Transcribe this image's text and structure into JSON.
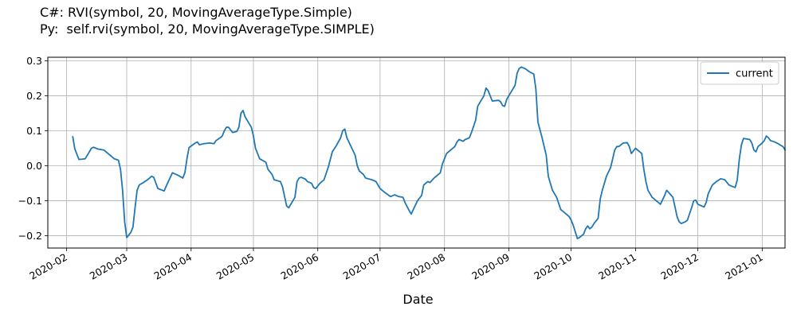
{
  "title_lines": [
    "C#: RVI(symbol, 20, MovingAverageType.Simple)",
    "Py:  self.rvi(symbol, 20, MovingAverageType.SIMPLE)"
  ],
  "chart_data": {
    "type": "line",
    "title": "",
    "xlabel": "Date",
    "ylabel": "",
    "xlim": [
      "2020-01-23",
      "2021-01-12"
    ],
    "ylim": [
      -0.235,
      0.31
    ],
    "grid": true,
    "legend": "top-right",
    "colors": {
      "current": "#1f77b4"
    },
    "x_ticks": [
      "2020-02-01",
      "2020-03-01",
      "2020-04-01",
      "2020-05-01",
      "2020-06-01",
      "2020-07-01",
      "2020-08-01",
      "2020-09-01",
      "2020-10-01",
      "2020-11-01",
      "2020-12-01",
      "2021-01-01"
    ],
    "x_tick_labels": [
      "2020-02",
      "2020-03",
      "2020-04",
      "2020-05",
      "2020-06",
      "2020-07",
      "2020-08",
      "2020-09",
      "2020-10",
      "2020-11",
      "2020-12",
      "2021-01"
    ],
    "y_ticks": [
      -0.2,
      -0.1,
      0.0,
      0.1,
      0.2,
      0.3
    ],
    "y_tick_labels": [
      "−0.2",
      "−0.1",
      "0.0",
      "0.1",
      "0.2",
      "0.3"
    ],
    "series": [
      {
        "name": "current",
        "points": [
          [
            "2020-02-04",
            0.083
          ],
          [
            "2020-02-05",
            0.048
          ],
          [
            "2020-02-07",
            0.018
          ],
          [
            "2020-02-10",
            0.02
          ],
          [
            "2020-02-11",
            0.03
          ],
          [
            "2020-02-13",
            0.05
          ],
          [
            "2020-02-14",
            0.053
          ],
          [
            "2020-02-16",
            0.048
          ],
          [
            "2020-02-19",
            0.045
          ],
          [
            "2020-02-20",
            0.04
          ],
          [
            "2020-02-22",
            0.03
          ],
          [
            "2020-02-24",
            0.02
          ],
          [
            "2020-02-26",
            0.016
          ],
          [
            "2020-02-27",
            -0.01
          ],
          [
            "2020-02-28",
            -0.07
          ],
          [
            "2020-02-29",
            -0.16
          ],
          [
            "2020-03-01",
            -0.205
          ],
          [
            "2020-03-03",
            -0.19
          ],
          [
            "2020-03-04",
            -0.175
          ],
          [
            "2020-03-05",
            -0.12
          ],
          [
            "2020-03-06",
            -0.07
          ],
          [
            "2020-03-07",
            -0.055
          ],
          [
            "2020-03-09",
            -0.048
          ],
          [
            "2020-03-11",
            -0.04
          ],
          [
            "2020-03-13",
            -0.03
          ],
          [
            "2020-03-14",
            -0.033
          ],
          [
            "2020-03-16",
            -0.065
          ],
          [
            "2020-03-19",
            -0.072
          ],
          [
            "2020-03-21",
            -0.045
          ],
          [
            "2020-03-23",
            -0.02
          ],
          [
            "2020-03-26",
            -0.028
          ],
          [
            "2020-03-28",
            -0.035
          ],
          [
            "2020-03-29",
            -0.02
          ],
          [
            "2020-03-30",
            0.02
          ],
          [
            "2020-03-31",
            0.052
          ],
          [
            "2020-04-03",
            0.065
          ],
          [
            "2020-04-04",
            0.068
          ],
          [
            "2020-04-05",
            0.06
          ],
          [
            "2020-04-07",
            0.063
          ],
          [
            "2020-04-10",
            0.065
          ],
          [
            "2020-04-12",
            0.063
          ],
          [
            "2020-04-13",
            0.072
          ],
          [
            "2020-04-15",
            0.08
          ],
          [
            "2020-04-16",
            0.085
          ],
          [
            "2020-04-17",
            0.1
          ],
          [
            "2020-04-18",
            0.11
          ],
          [
            "2020-04-19",
            0.11
          ],
          [
            "2020-04-21",
            0.095
          ],
          [
            "2020-04-23",
            0.098
          ],
          [
            "2020-04-24",
            0.11
          ],
          [
            "2020-04-25",
            0.15
          ],
          [
            "2020-04-26",
            0.158
          ],
          [
            "2020-04-27",
            0.14
          ],
          [
            "2020-04-29",
            0.12
          ],
          [
            "2020-04-30",
            0.11
          ],
          [
            "2020-05-01",
            0.085
          ],
          [
            "2020-05-02",
            0.05
          ],
          [
            "2020-05-03",
            0.035
          ],
          [
            "2020-05-04",
            0.02
          ],
          [
            "2020-05-07",
            0.01
          ],
          [
            "2020-05-08",
            -0.01
          ],
          [
            "2020-05-10",
            -0.025
          ],
          [
            "2020-05-11",
            -0.04
          ],
          [
            "2020-05-14",
            -0.045
          ],
          [
            "2020-05-15",
            -0.06
          ],
          [
            "2020-05-17",
            -0.115
          ],
          [
            "2020-05-18",
            -0.12
          ],
          [
            "2020-05-20",
            -0.1
          ],
          [
            "2020-05-21",
            -0.09
          ],
          [
            "2020-05-22",
            -0.045
          ],
          [
            "2020-05-23",
            -0.035
          ],
          [
            "2020-05-24",
            -0.033
          ],
          [
            "2020-05-26",
            -0.038
          ],
          [
            "2020-05-27",
            -0.045
          ],
          [
            "2020-05-29",
            -0.05
          ],
          [
            "2020-05-30",
            -0.062
          ],
          [
            "2020-05-31",
            -0.065
          ],
          [
            "2020-06-02",
            -0.05
          ],
          [
            "2020-06-04",
            -0.04
          ],
          [
            "2020-06-06",
            -0.005
          ],
          [
            "2020-06-08",
            0.04
          ],
          [
            "2020-06-10",
            0.058
          ],
          [
            "2020-06-12",
            0.08
          ],
          [
            "2020-06-13",
            0.1
          ],
          [
            "2020-06-14",
            0.105
          ],
          [
            "2020-06-15",
            0.08
          ],
          [
            "2020-06-17",
            0.055
          ],
          [
            "2020-06-19",
            0.03
          ],
          [
            "2020-06-20",
            0.0
          ],
          [
            "2020-06-21",
            -0.015
          ],
          [
            "2020-06-23",
            -0.025
          ],
          [
            "2020-06-24",
            -0.035
          ],
          [
            "2020-06-27",
            -0.04
          ],
          [
            "2020-06-29",
            -0.045
          ],
          [
            "2020-07-01",
            -0.065
          ],
          [
            "2020-07-03",
            -0.075
          ],
          [
            "2020-07-06",
            -0.088
          ],
          [
            "2020-07-08",
            -0.083
          ],
          [
            "2020-07-10",
            -0.088
          ],
          [
            "2020-07-12",
            -0.09
          ],
          [
            "2020-07-13",
            -0.105
          ],
          [
            "2020-07-15",
            -0.128
          ],
          [
            "2020-07-16",
            -0.138
          ],
          [
            "2020-07-17",
            -0.125
          ],
          [
            "2020-07-19",
            -0.1
          ],
          [
            "2020-07-21",
            -0.085
          ],
          [
            "2020-07-22",
            -0.055
          ],
          [
            "2020-07-24",
            -0.045
          ],
          [
            "2020-07-25",
            -0.048
          ],
          [
            "2020-07-27",
            -0.035
          ],
          [
            "2020-07-30",
            -0.02
          ],
          [
            "2020-07-31",
            0.005
          ],
          [
            "2020-08-02",
            0.035
          ],
          [
            "2020-08-04",
            0.045
          ],
          [
            "2020-08-06",
            0.055
          ],
          [
            "2020-08-07",
            0.068
          ],
          [
            "2020-08-08",
            0.075
          ],
          [
            "2020-08-10",
            0.07
          ],
          [
            "2020-08-11",
            0.075
          ],
          [
            "2020-08-13",
            0.08
          ],
          [
            "2020-08-14",
            0.095
          ],
          [
            "2020-08-16",
            0.13
          ],
          [
            "2020-08-17",
            0.17
          ],
          [
            "2020-08-19",
            0.19
          ],
          [
            "2020-08-20",
            0.2
          ],
          [
            "2020-08-21",
            0.222
          ],
          [
            "2020-08-22",
            0.215
          ],
          [
            "2020-08-23",
            0.2
          ],
          [
            "2020-08-24",
            0.185
          ],
          [
            "2020-08-27",
            0.187
          ],
          [
            "2020-08-28",
            0.183
          ],
          [
            "2020-08-29",
            0.172
          ],
          [
            "2020-08-30",
            0.17
          ],
          [
            "2020-08-31",
            0.19
          ],
          [
            "2020-09-02",
            0.21
          ],
          [
            "2020-09-04",
            0.23
          ],
          [
            "2020-09-05",
            0.265
          ],
          [
            "2020-09-06",
            0.278
          ],
          [
            "2020-09-07",
            0.282
          ],
          [
            "2020-09-09",
            0.277
          ],
          [
            "2020-09-11",
            0.268
          ],
          [
            "2020-09-13",
            0.262
          ],
          [
            "2020-09-14",
            0.22
          ],
          [
            "2020-09-15",
            0.125
          ],
          [
            "2020-09-17",
            0.08
          ],
          [
            "2020-09-19",
            0.03
          ],
          [
            "2020-09-20",
            -0.03
          ],
          [
            "2020-09-22",
            -0.07
          ],
          [
            "2020-09-24",
            -0.09
          ],
          [
            "2020-09-26",
            -0.125
          ],
          [
            "2020-09-28",
            -0.135
          ],
          [
            "2020-09-30",
            -0.145
          ],
          [
            "2020-10-01",
            -0.155
          ],
          [
            "2020-10-02",
            -0.17
          ],
          [
            "2020-10-04",
            -0.208
          ],
          [
            "2020-10-05",
            -0.205
          ],
          [
            "2020-10-07",
            -0.195
          ],
          [
            "2020-10-08",
            -0.18
          ],
          [
            "2020-10-09",
            -0.172
          ],
          [
            "2020-10-10",
            -0.18
          ],
          [
            "2020-10-11",
            -0.175
          ],
          [
            "2020-10-12",
            -0.165
          ],
          [
            "2020-10-14",
            -0.15
          ],
          [
            "2020-10-15",
            -0.095
          ],
          [
            "2020-10-16",
            -0.07
          ],
          [
            "2020-10-18",
            -0.03
          ],
          [
            "2020-10-20",
            -0.005
          ],
          [
            "2020-10-21",
            0.02
          ],
          [
            "2020-10-22",
            0.045
          ],
          [
            "2020-10-23",
            0.055
          ],
          [
            "2020-10-24",
            0.055
          ],
          [
            "2020-10-26",
            0.065
          ],
          [
            "2020-10-28",
            0.066
          ],
          [
            "2020-10-29",
            0.055
          ],
          [
            "2020-10-30",
            0.035
          ],
          [
            "2020-11-01",
            0.05
          ],
          [
            "2020-11-03",
            0.04
          ],
          [
            "2020-11-04",
            0.035
          ],
          [
            "2020-11-05",
            -0.01
          ],
          [
            "2020-11-06",
            -0.045
          ],
          [
            "2020-11-07",
            -0.07
          ],
          [
            "2020-11-09",
            -0.09
          ],
          [
            "2020-11-10",
            -0.095
          ],
          [
            "2020-11-11",
            -0.1
          ],
          [
            "2020-11-13",
            -0.11
          ],
          [
            "2020-11-15",
            -0.085
          ],
          [
            "2020-11-16",
            -0.07
          ],
          [
            "2020-11-19",
            -0.09
          ],
          [
            "2020-11-21",
            -0.145
          ],
          [
            "2020-11-22",
            -0.16
          ],
          [
            "2020-11-23",
            -0.165
          ],
          [
            "2020-11-25",
            -0.16
          ],
          [
            "2020-11-26",
            -0.155
          ],
          [
            "2020-11-28",
            -0.12
          ],
          [
            "2020-11-29",
            -0.1
          ],
          [
            "2020-11-30",
            -0.098
          ],
          [
            "2020-12-01",
            -0.11
          ],
          [
            "2020-12-03",
            -0.115
          ],
          [
            "2020-12-04",
            -0.118
          ],
          [
            "2020-12-05",
            -0.105
          ],
          [
            "2020-12-06",
            -0.08
          ],
          [
            "2020-12-08",
            -0.055
          ],
          [
            "2020-12-10",
            -0.045
          ],
          [
            "2020-12-12",
            -0.037
          ],
          [
            "2020-12-14",
            -0.04
          ],
          [
            "2020-12-16",
            -0.055
          ],
          [
            "2020-12-18",
            -0.06
          ],
          [
            "2020-12-19",
            -0.062
          ],
          [
            "2020-12-20",
            -0.04
          ],
          [
            "2020-12-21",
            0.02
          ],
          [
            "2020-12-22",
            0.06
          ],
          [
            "2020-12-23",
            0.078
          ],
          [
            "2020-12-26",
            0.075
          ],
          [
            "2020-12-27",
            0.065
          ],
          [
            "2020-12-28",
            0.045
          ],
          [
            "2020-12-29",
            0.04
          ],
          [
            "2020-12-30",
            0.055
          ],
          [
            "2021-01-01",
            0.065
          ],
          [
            "2021-01-02",
            0.072
          ],
          [
            "2021-01-03",
            0.085
          ],
          [
            "2021-01-04",
            0.08
          ],
          [
            "2021-01-05",
            0.072
          ],
          [
            "2021-01-07",
            0.068
          ],
          [
            "2021-01-09",
            0.062
          ],
          [
            "2021-01-10",
            0.058
          ],
          [
            "2021-01-11",
            0.055
          ],
          [
            "2021-01-12",
            0.045
          ]
        ]
      }
    ]
  }
}
